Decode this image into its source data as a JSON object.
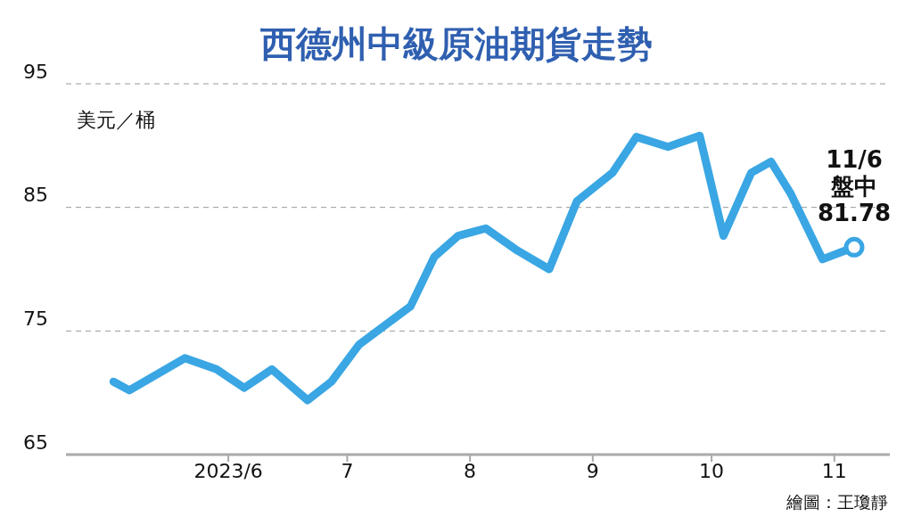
{
  "chart_data": {
    "type": "line",
    "title": "西德州中級原油期貨走勢",
    "ylabel": "美元／桶",
    "x": [
      "2023-05-03",
      "2023-05-07",
      "2023-05-21",
      "2023-05-29",
      "2023-06-05",
      "2023-06-12",
      "2023-06-21",
      "2023-06-27",
      "2023-07-04",
      "2023-07-17",
      "2023-07-23",
      "2023-07-29",
      "2023-08-05",
      "2023-08-13",
      "2023-08-21",
      "2023-08-28",
      "2023-09-06",
      "2023-09-12",
      "2023-09-20",
      "2023-09-28",
      "2023-10-04",
      "2023-10-11",
      "2023-10-16",
      "2023-10-21",
      "2023-10-29",
      "2023-11-06"
    ],
    "series": [
      {
        "color": "#3aa6e3",
        "values": [
          70.9,
          70.2,
          72.8,
          71.9,
          70.4,
          71.9,
          69.4,
          70.9,
          73.9,
          77.0,
          81.0,
          82.7,
          83.3,
          81.5,
          80.0,
          85.5,
          87.8,
          90.7,
          89.9,
          90.8,
          82.7,
          87.8,
          88.7,
          86.1,
          80.8,
          81.78
        ]
      }
    ],
    "xlim": [
      "2023-04-21",
      "2023-11-15"
    ],
    "xticks": [
      {
        "value": "2023-06-01",
        "label": "2023/6"
      },
      {
        "value": "2023-07-01",
        "label": "7"
      },
      {
        "value": "2023-08-01",
        "label": "8"
      },
      {
        "value": "2023-09-01",
        "label": "9"
      },
      {
        "value": "2023-10-01",
        "label": "10"
      },
      {
        "value": "2023-11-01",
        "label": "11"
      }
    ],
    "ylim": [
      65,
      95
    ],
    "yticks": [
      65,
      75,
      85,
      95
    ],
    "grid": "y",
    "marker": "none",
    "line_style": "solid",
    "legend": false,
    "annotations": [
      {
        "text": "11/6\n盤中\n81.78",
        "x": "2023-11-06",
        "y": 81.78
      },
      "繪圖：王瓊靜"
    ]
  }
}
